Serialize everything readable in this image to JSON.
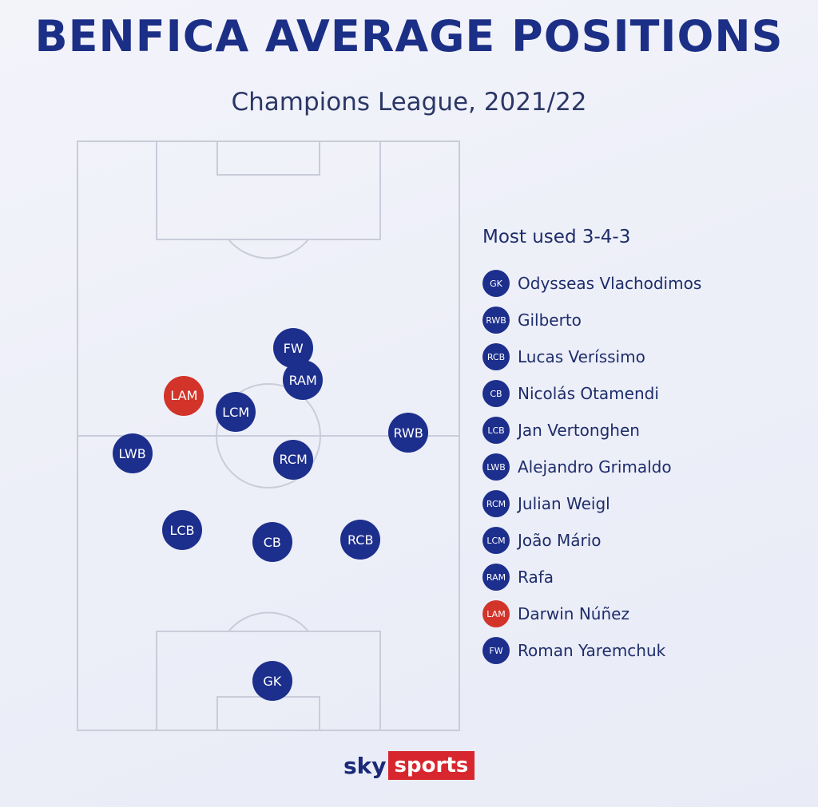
{
  "title": "BENFICA AVERAGE POSITIONS",
  "subtitle": "Champions League, 2021/22",
  "colors": {
    "primary": "#1d2f8c",
    "highlight": "#d2342a",
    "pitch_lines": "#c9ccd9"
  },
  "formation": {
    "title": "Most used 3-4-3"
  },
  "players": [
    {
      "pos": "GK",
      "name": "Odysseas Vlachodimos",
      "highlight": false,
      "fx": 0.51,
      "fy": 0.915
    },
    {
      "pos": "RWB",
      "name": "Gilberto",
      "highlight": false,
      "fx": 0.865,
      "fy": 0.495
    },
    {
      "pos": "RCB",
      "name": "Lucas Veríssimo",
      "highlight": false,
      "fx": 0.74,
      "fy": 0.676
    },
    {
      "pos": "CB",
      "name": "Nicolás Otamendi",
      "highlight": false,
      "fx": 0.51,
      "fy": 0.68
    },
    {
      "pos": "LCB",
      "name": "Jan Vertonghen",
      "highlight": false,
      "fx": 0.275,
      "fy": 0.66
    },
    {
      "pos": "LWB",
      "name": "Alejandro Grimaldo",
      "highlight": false,
      "fx": 0.145,
      "fy": 0.53
    },
    {
      "pos": "RCM",
      "name": "Julian Weigl",
      "highlight": false,
      "fx": 0.565,
      "fy": 0.54
    },
    {
      "pos": "LCM",
      "name": "João Mário",
      "highlight": false,
      "fx": 0.415,
      "fy": 0.46
    },
    {
      "pos": "RAM",
      "name": "Rafa",
      "highlight": false,
      "fx": 0.59,
      "fy": 0.406
    },
    {
      "pos": "LAM",
      "name": "Darwin Núñez",
      "highlight": true,
      "fx": 0.28,
      "fy": 0.432
    },
    {
      "pos": "FW",
      "name": "Roman Yaremchuk",
      "highlight": false,
      "fx": 0.565,
      "fy": 0.352
    }
  ],
  "branding": {
    "sky": "sky",
    "sports": "sports"
  }
}
